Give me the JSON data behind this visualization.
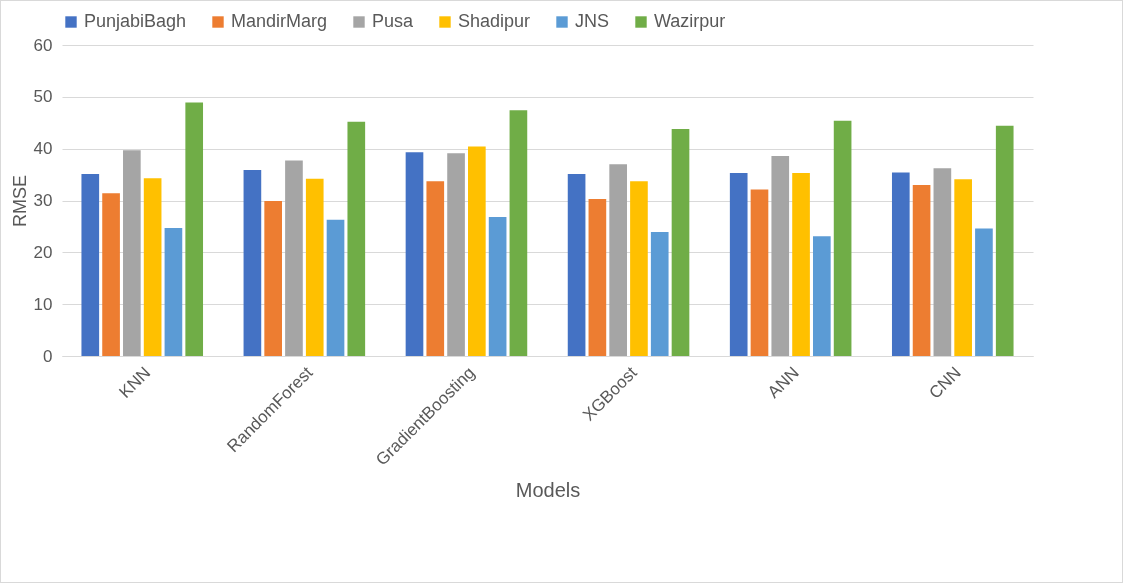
{
  "chart_data": {
    "type": "bar",
    "xlabel": "Models",
    "ylabel": "RMSE",
    "categories": [
      "KNN",
      "RandomForest",
      "GradientBoosting",
      "XGBoost",
      "ANN",
      "CNN"
    ],
    "series": [
      {
        "name": "PunjabiBagh",
        "color": "#4472c4",
        "values": [
          35.1,
          35.9,
          39.3,
          35.1,
          35.3,
          35.4
        ]
      },
      {
        "name": "MandirMarg",
        "color": "#ed7d31",
        "values": [
          31.4,
          29.9,
          33.7,
          30.3,
          32.1,
          33.0
        ]
      },
      {
        "name": "Pusa",
        "color": "#a5a5a5",
        "values": [
          39.7,
          37.7,
          39.1,
          37.0,
          38.6,
          36.2
        ]
      },
      {
        "name": "Shadipur",
        "color": "#ffc000",
        "values": [
          34.3,
          34.2,
          40.4,
          33.7,
          35.3,
          34.1
        ]
      },
      {
        "name": "JNS",
        "color": "#5b9bd5",
        "values": [
          24.7,
          26.3,
          26.8,
          23.9,
          23.1,
          24.6
        ]
      },
      {
        "name": "Wazirpur",
        "color": "#70ad47",
        "values": [
          48.9,
          45.2,
          47.4,
          43.8,
          45.4,
          44.4
        ]
      }
    ],
    "ylim": [
      0,
      60
    ],
    "yticks": [
      0,
      10,
      20,
      30,
      40,
      50,
      60
    ],
    "grid": "y",
    "legend": "top"
  }
}
